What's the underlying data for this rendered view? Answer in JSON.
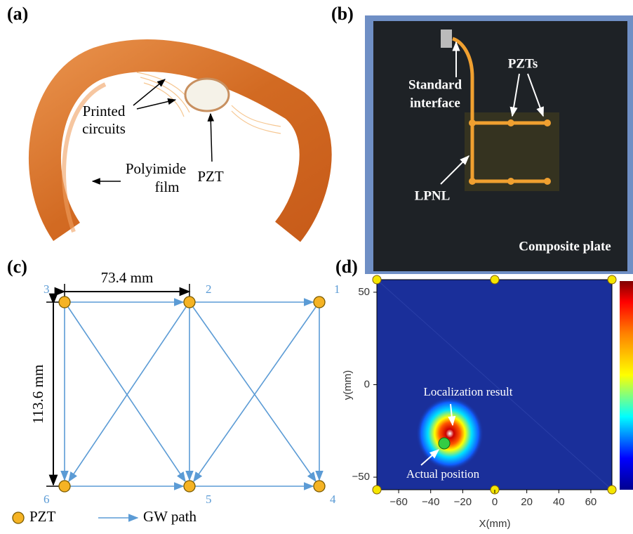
{
  "panel_a": {
    "label": "(a)",
    "annotations": {
      "circuits": [
        "Printed",
        "circuits"
      ],
      "film": [
        "Polyimide",
        "film"
      ],
      "pzt": "PZT"
    }
  },
  "panel_b": {
    "label": "(b)",
    "annotations": {
      "interface": [
        "Standard",
        "interface"
      ],
      "pzts": "PZTs",
      "lpnl": "LPNL",
      "plate": "Composite plate"
    }
  },
  "panel_c": {
    "label": "(c)",
    "nodes": [
      "1",
      "2",
      "3",
      "4",
      "5",
      "6"
    ],
    "width": "73.4 mm",
    "height": "113.6 mm",
    "legend": [
      "PZT",
      "GW path"
    ]
  },
  "panel_d": {
    "label": "(d)",
    "x_label": "X(mm)",
    "y_label": "y(mm)",
    "xticks": [
      {
        "value": -60,
        "label": "−60"
      },
      {
        "value": -40,
        "label": "−40"
      },
      {
        "value": -20,
        "label": "−20"
      },
      0,
      20,
      40,
      60
    ],
    "yticks": [
      {
        "value": -50,
        "label": "−50"
      },
      0,
      50
    ],
    "annotations": {
      "result": "Localization result",
      "actual": "Actual position"
    }
  }
}
